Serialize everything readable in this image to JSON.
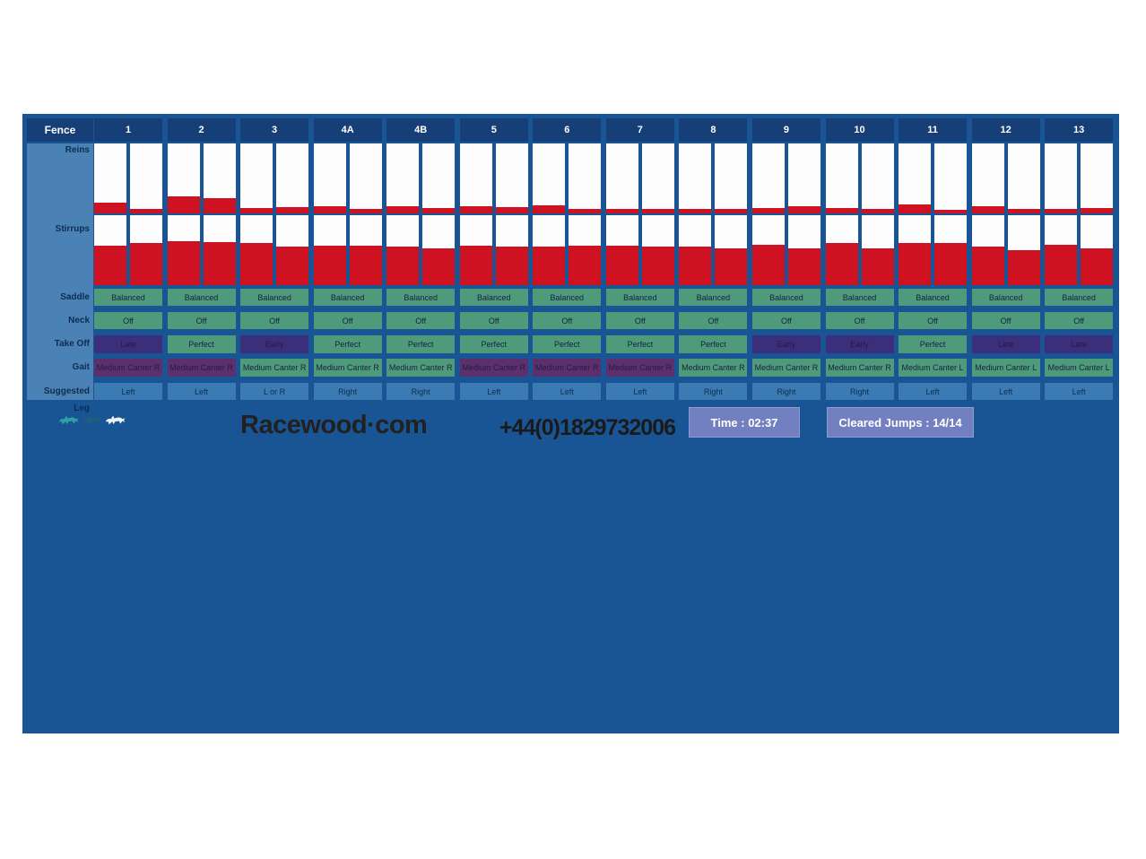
{
  "colors": {
    "panel_bg": "#195594",
    "header_navy": "#153f76",
    "label_col_bg": "#4b82b6",
    "bar_white": "#fdfdfd",
    "bar_red": "#ce1221",
    "cell_green": "#4f9a7a",
    "cell_purple": "#3b2e7a",
    "cell_magenta": "#5e2f6d",
    "cell_leg_blue": "#3b7ab3",
    "badge_bg": "#7280c2",
    "cell_text": "#15233f",
    "label_text": "#0d2c52",
    "logo_teal": "#2f9fa8",
    "logo_dark": "#1f5f7e",
    "logo_light": "#eef2f4"
  },
  "header": {
    "fence_label": "Fence"
  },
  "row_labels": [
    "Reins",
    "Stirrups",
    "Saddle",
    "Neck",
    "Take Off",
    "Gait",
    "Suggested Leg"
  ],
  "fences": [
    {
      "id": "1",
      "reins": [
        16,
        6
      ],
      "stirrups": [
        57,
        60
      ],
      "saddle": "Balanced",
      "neck": "Off",
      "take_off": {
        "text": "Late",
        "flag": "purple"
      },
      "gait": {
        "text": "Medium Canter R",
        "flag": "purple"
      },
      "suggested_leg": "Left"
    },
    {
      "id": "2",
      "reins": [
        24,
        22
      ],
      "stirrups": [
        63,
        61
      ],
      "saddle": "Balanced",
      "neck": "Off",
      "take_off": {
        "text": "Perfect",
        "flag": "green"
      },
      "gait": {
        "text": "Medium Canter R",
        "flag": "purple"
      },
      "suggested_leg": "Left"
    },
    {
      "id": "3",
      "reins": [
        8,
        9
      ],
      "stirrups": [
        60,
        55
      ],
      "saddle": "Balanced",
      "neck": "Off",
      "take_off": {
        "text": "Early",
        "flag": "purple"
      },
      "gait": {
        "text": "Medium Canter R",
        "flag": "green"
      },
      "suggested_leg": "L or R"
    },
    {
      "id": "4A",
      "reins": [
        10,
        6
      ],
      "stirrups": [
        57,
        57
      ],
      "saddle": "Balanced",
      "neck": "Off",
      "take_off": {
        "text": "Perfect",
        "flag": "green"
      },
      "gait": {
        "text": "Medium Canter R",
        "flag": "green"
      },
      "suggested_leg": "Right"
    },
    {
      "id": "4B",
      "reins": [
        10,
        8
      ],
      "stirrups": [
        55,
        53
      ],
      "saddle": "Balanced",
      "neck": "Off",
      "take_off": {
        "text": "Perfect",
        "flag": "green"
      },
      "gait": {
        "text": "Medium Canter R",
        "flag": "green"
      },
      "suggested_leg": "Right"
    },
    {
      "id": "5",
      "reins": [
        10,
        9
      ],
      "stirrups": [
        57,
        55
      ],
      "saddle": "Balanced",
      "neck": "Off",
      "take_off": {
        "text": "Perfect",
        "flag": "green"
      },
      "gait": {
        "text": "Medium Canter R",
        "flag": "purple"
      },
      "suggested_leg": "Left"
    },
    {
      "id": "6",
      "reins": [
        12,
        7
      ],
      "stirrups": [
        55,
        57
      ],
      "saddle": "Balanced",
      "neck": "Off",
      "take_off": {
        "text": "Perfect",
        "flag": "green"
      },
      "gait": {
        "text": "Medium Canter R",
        "flag": "purple"
      },
      "suggested_leg": "Left"
    },
    {
      "id": "7",
      "reins": [
        7,
        7
      ],
      "stirrups": [
        57,
        55
      ],
      "saddle": "Balanced",
      "neck": "Off",
      "take_off": {
        "text": "Perfect",
        "flag": "green"
      },
      "gait": {
        "text": "Medium Canter R",
        "flag": "purple"
      },
      "suggested_leg": "Left"
    },
    {
      "id": "8",
      "reins": [
        7,
        7
      ],
      "stirrups": [
        55,
        53
      ],
      "saddle": "Balanced",
      "neck": "Off",
      "take_off": {
        "text": "Perfect",
        "flag": "green"
      },
      "gait": {
        "text": "Medium Canter R",
        "flag": "green"
      },
      "suggested_leg": "Right"
    },
    {
      "id": "9",
      "reins": [
        8,
        10
      ],
      "stirrups": [
        58,
        53
      ],
      "saddle": "Balanced",
      "neck": "Off",
      "take_off": {
        "text": "Early",
        "flag": "purple"
      },
      "gait": {
        "text": "Medium Canter R",
        "flag": "green"
      },
      "suggested_leg": "Right"
    },
    {
      "id": "10",
      "reins": [
        8,
        7
      ],
      "stirrups": [
        60,
        52
      ],
      "saddle": "Balanced",
      "neck": "Off",
      "take_off": {
        "text": "Early",
        "flag": "purple"
      },
      "gait": {
        "text": "Medium Canter R",
        "flag": "green"
      },
      "suggested_leg": "Right"
    },
    {
      "id": "11",
      "reins": [
        13,
        5
      ],
      "stirrups": [
        60,
        60
      ],
      "saddle": "Balanced",
      "neck": "Off",
      "take_off": {
        "text": "Perfect",
        "flag": "green"
      },
      "gait": {
        "text": "Medium Canter L",
        "flag": "green"
      },
      "suggested_leg": "Left"
    },
    {
      "id": "12",
      "reins": [
        10,
        7
      ],
      "stirrups": [
        55,
        50
      ],
      "saddle": "Balanced",
      "neck": "Off",
      "take_off": {
        "text": "Late",
        "flag": "purple"
      },
      "gait": {
        "text": "Medium Canter L",
        "flag": "green"
      },
      "suggested_leg": "Left"
    },
    {
      "id": "13",
      "reins": [
        6,
        8
      ],
      "stirrups": [
        58,
        52
      ],
      "saddle": "Balanced",
      "neck": "Off",
      "take_off": {
        "text": "Late",
        "flag": "purple"
      },
      "gait": {
        "text": "Medium Canter L",
        "flag": "green"
      },
      "suggested_leg": "Left"
    }
  ],
  "footer": {
    "brand": "Racewood·com",
    "phone": "+44(0)1829732006",
    "time": "Time : 02:37",
    "cleared": "Cleared Jumps : 14/14",
    "logo": "three-galloping-horses"
  }
}
